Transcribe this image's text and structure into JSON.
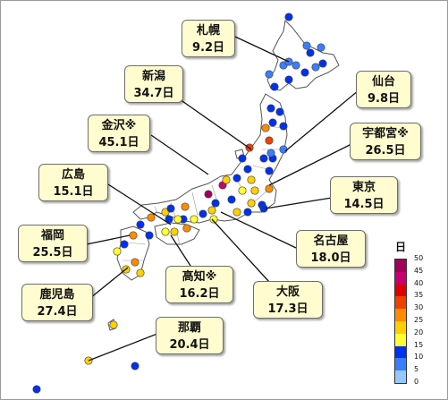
{
  "callouts": [
    {
      "id": "sapporo",
      "name": "札幌",
      "value": "9.2日"
    },
    {
      "id": "niigata",
      "name": "新潟",
      "value": "34.7日"
    },
    {
      "id": "sendai",
      "name": "仙台",
      "value": "9.8日"
    },
    {
      "id": "kanazawa",
      "name": "金沢※",
      "value": "45.1日"
    },
    {
      "id": "utsunomiya",
      "name": "宇都宮※",
      "value": "26.5日"
    },
    {
      "id": "hiroshima",
      "name": "広島",
      "value": "15.1日"
    },
    {
      "id": "tokyo",
      "name": "東京",
      "value": "14.5日"
    },
    {
      "id": "fukuoka",
      "name": "福岡",
      "value": "25.5日"
    },
    {
      "id": "nagoya",
      "name": "名古屋",
      "value": "18.0日"
    },
    {
      "id": "kagoshima",
      "name": "鹿児島",
      "value": "27.4日"
    },
    {
      "id": "kochi",
      "name": "高知※",
      "value": "16.2日"
    },
    {
      "id": "osaka",
      "name": "大阪",
      "value": "17.3日"
    },
    {
      "id": "naha",
      "name": "那覇",
      "value": "20.4日"
    }
  ],
  "scale": {
    "title": "日",
    "ticks": [
      "50",
      "45",
      "40",
      "35",
      "30",
      "25",
      "20",
      "15",
      "10",
      "5",
      "0"
    ],
    "colors": [
      "#a0005a",
      "#c8006e",
      "#e00000",
      "#f04000",
      "#ff8c00",
      "#ffd000",
      "#ffff30",
      "#0030f0",
      "#3a7dff",
      "#96c8ff",
      "#ffffff"
    ]
  },
  "stations": [
    {
      "v": 12
    },
    {
      "v": 9
    },
    {
      "v": 8
    },
    {
      "v": 10
    },
    {
      "v": 9
    },
    {
      "v": 11
    },
    {
      "v": 13
    },
    {
      "v": 12
    },
    {
      "v": 10
    },
    {
      "v": 9
    },
    {
      "v": 8
    },
    {
      "v": 12
    },
    {
      "v": 14
    },
    {
      "v": 11
    },
    {
      "v": 10
    },
    {
      "v": 26
    },
    {
      "v": 32
    },
    {
      "v": 9
    },
    {
      "v": 11
    },
    {
      "v": 13
    },
    {
      "v": 12
    },
    {
      "v": 34.7
    },
    {
      "v": 14
    },
    {
      "v": 9.8
    },
    {
      "v": 12
    },
    {
      "v": 11
    },
    {
      "v": 45.1
    },
    {
      "v": 40
    },
    {
      "v": 26.5
    },
    {
      "v": 22
    },
    {
      "v": 20
    },
    {
      "v": 14
    },
    {
      "v": 14.5
    },
    {
      "v": 13
    },
    {
      "v": 23
    },
    {
      "v": 12
    },
    {
      "v": 18.0
    },
    {
      "v": 20
    },
    {
      "v": 11
    },
    {
      "v": 17.3
    },
    {
      "v": 13
    },
    {
      "v": 28
    },
    {
      "v": 15.1
    },
    {
      "v": 12
    },
    {
      "v": 22
    },
    {
      "v": 27
    },
    {
      "v": 13
    },
    {
      "v": 25.5
    },
    {
      "v": 14
    },
    {
      "v": 19
    },
    {
      "v": 16.2
    },
    {
      "v": 21
    },
    {
      "v": 29
    },
    {
      "v": 27.4
    },
    {
      "v": 20
    },
    {
      "v": 23
    },
    {
      "v": 20.4
    },
    {
      "v": 21
    },
    {
      "v": 14
    },
    {
      "v": 12
    },
    {
      "v": 9
    },
    {
      "v": 9.2
    },
    {
      "v": 24
    },
    {
      "v": 16
    },
    {
      "v": 13
    },
    {
      "v": 22
    },
    {
      "v": 10
    },
    {
      "v": 14
    }
  ]
}
